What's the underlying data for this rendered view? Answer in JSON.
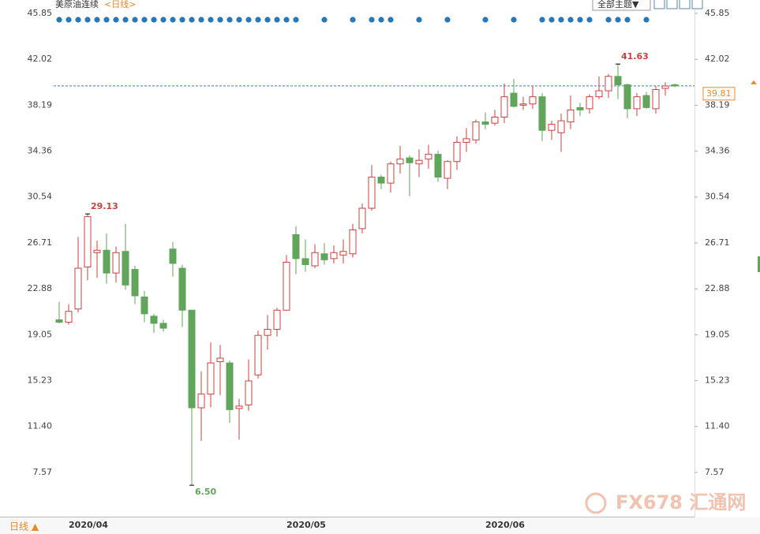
{
  "chart_data": {
    "type": "candlestick",
    "title": "美原油连续",
    "subtitle": "<日线>",
    "theme_button": "全部主题▼",
    "period_label": "日线 ▲",
    "watermark": "FX678 汇通网",
    "categories": [
      null,
      "2020/04",
      null,
      null,
      null,
      null,
      null,
      null,
      null,
      null,
      null,
      null,
      null,
      null,
      null,
      null,
      null,
      null,
      null,
      null,
      null,
      null,
      null,
      null,
      "2020/05",
      null,
      null,
      null,
      null,
      null,
      null,
      null,
      null,
      null,
      null,
      null,
      null,
      null,
      null,
      null,
      null,
      null,
      null,
      null,
      null,
      "2020/06",
      null,
      null,
      null,
      null,
      null,
      null,
      null,
      null,
      null,
      null,
      null,
      null,
      null,
      null,
      null,
      null,
      null,
      null,
      null,
      null
    ],
    "open": [
      20.3,
      20.1,
      21.2,
      24.7,
      25.9,
      26.1,
      24.2,
      26.0,
      24.5,
      22.2,
      20.6,
      20.0,
      26.2,
      24.6,
      21.1,
      12.96,
      14.1,
      16.8,
      16.7,
      12.9,
      13.2,
      15.7,
      19.0,
      19.5,
      21.1,
      27.4,
      25.4,
      24.8,
      25.8,
      25.4,
      25.7,
      25.8,
      27.9,
      29.6,
      32.2,
      31.7,
      33.3,
      33.8,
      33.3,
      33.7,
      34.1,
      32.1,
      33.5,
      35.1,
      35.3,
      36.8,
      36.7,
      37.2,
      39.2,
      38.2,
      38.3,
      38.9,
      36.1,
      35.9,
      36.8,
      38.0,
      37.9,
      38.9,
      39.4,
      40.6,
      39.9,
      37.9,
      39.0,
      37.9,
      39.6,
      39.9
    ],
    "high": [
      21.8,
      21.6,
      27.2,
      29.13,
      26.9,
      27.5,
      26.4,
      28.3,
      24.8,
      22.7,
      20.8,
      20.3,
      26.8,
      24.9,
      21.1,
      16.0,
      18.4,
      18.2,
      16.9,
      13.7,
      17.0,
      19.4,
      20.7,
      21.3,
      25.7,
      28.1,
      27.0,
      26.6,
      26.7,
      26.5,
      27.0,
      28.3,
      30.0,
      33.2,
      32.4,
      33.5,
      34.8,
      34.0,
      34.5,
      34.9,
      34.4,
      33.6,
      35.6,
      36.3,
      37.0,
      37.6,
      37.8,
      40.0,
      40.4,
      38.9,
      39.8,
      39.2,
      36.9,
      37.5,
      39.0,
      38.4,
      39.1,
      40.6,
      40.8,
      41.63,
      40.0,
      39.2,
      39.3,
      39.8,
      40.1,
      40.0
    ],
    "low": [
      20.0,
      19.9,
      20.9,
      23.6,
      23.8,
      23.3,
      23.4,
      22.8,
      21.6,
      20.1,
      19.2,
      19.3,
      23.9,
      19.7,
      6.5,
      10.2,
      13.0,
      14.0,
      11.7,
      10.3,
      12.7,
      15.4,
      17.8,
      18.9,
      21.1,
      24.1,
      24.3,
      24.6,
      24.9,
      25.0,
      25.0,
      25.5,
      27.5,
      29.4,
      31.2,
      30.9,
      32.5,
      30.6,
      32.2,
      32.9,
      31.8,
      31.2,
      32.8,
      34.3,
      35.0,
      36.2,
      36.5,
      36.7,
      38.0,
      37.8,
      37.9,
      35.2,
      35.3,
      34.3,
      36.2,
      37.3,
      37.5,
      38.7,
      38.8,
      38.7,
      37.1,
      37.3,
      37.9,
      37.5,
      39.0,
      39.7
    ],
    "close": [
      20.1,
      21.0,
      24.6,
      28.9,
      26.1,
      24.2,
      25.9,
      23.2,
      22.3,
      20.8,
      20.0,
      19.6,
      25.0,
      21.1,
      12.96,
      14.1,
      16.7,
      17.1,
      12.8,
      13.1,
      15.2,
      19.0,
      19.5,
      21.1,
      25.1,
      25.4,
      24.9,
      25.9,
      25.3,
      25.9,
      26.0,
      27.8,
      29.6,
      32.2,
      31.7,
      33.3,
      33.7,
      33.4,
      33.6,
      34.1,
      32.2,
      33.5,
      35.1,
      35.4,
      36.8,
      36.6,
      37.2,
      38.9,
      38.1,
      38.3,
      38.9,
      36.1,
      36.6,
      36.9,
      37.8,
      37.8,
      38.9,
      39.4,
      40.6,
      39.9,
      37.9,
      38.9,
      38.0,
      39.5,
      39.8,
      39.8
    ],
    "up_color": "#c9413d",
    "down_color": "#5fa55a",
    "annotations": [
      {
        "value": 29.13,
        "label": "29.13"
      },
      {
        "value": 6.5,
        "label": "6.50"
      },
      {
        "value": 41.63,
        "label": "41.63"
      }
    ],
    "last_price": {
      "value": 39.81,
      "label": "39.81"
    },
    "ylim": [
      3.88,
      46.97
    ],
    "yticks": [
      {
        "value": 45.85,
        "label": "45.85"
      },
      {
        "value": 42.02,
        "label": "42.02"
      },
      {
        "value": 38.19,
        "label": "38.19"
      },
      {
        "value": 34.36,
        "label": "34.36"
      },
      {
        "value": 30.54,
        "label": "30.54"
      },
      {
        "value": 26.71,
        "label": "26.71"
      },
      {
        "value": 22.88,
        "label": "22.88"
      },
      {
        "value": 19.05,
        "label": "19.05"
      },
      {
        "value": 15.23,
        "label": "15.23"
      },
      {
        "value": 11.4,
        "label": "11.40"
      },
      {
        "value": 7.57,
        "label": "7.57"
      }
    ]
  }
}
